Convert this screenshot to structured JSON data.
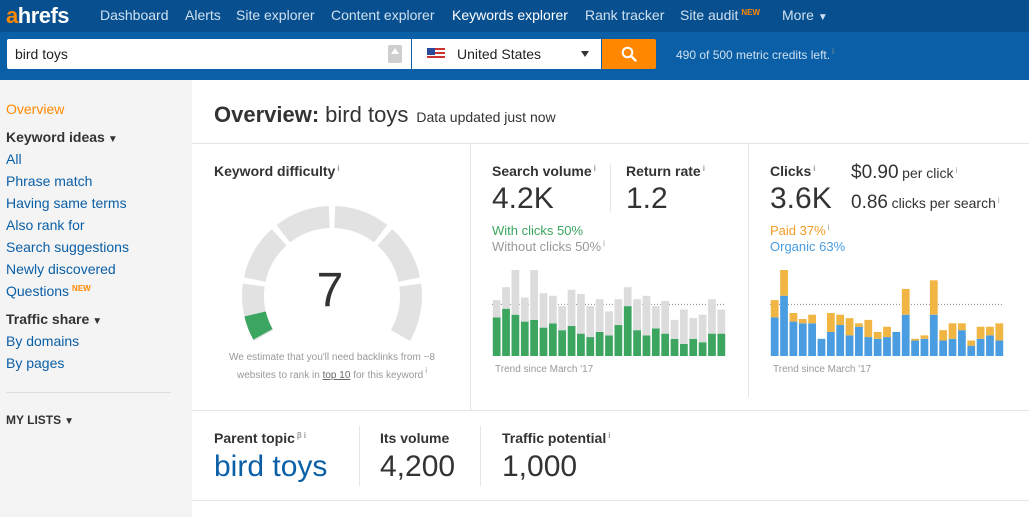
{
  "nav": {
    "logo_a": "a",
    "logo_rest": "hrefs",
    "items": [
      {
        "label": "Dashboard"
      },
      {
        "label": "Alerts"
      },
      {
        "label": "Site explorer"
      },
      {
        "label": "Content explorer"
      },
      {
        "label": "Keywords explorer"
      },
      {
        "label": "Rank tracker"
      },
      {
        "label": "Site audit",
        "badge": "NEW"
      },
      {
        "label": "More"
      }
    ]
  },
  "search": {
    "value": "bird toys",
    "country": "United States",
    "credits": "490 of 500 metric credits left.",
    "info": "i"
  },
  "sidebar": {
    "overview": "Overview",
    "keyword_ideas": "Keyword ideas",
    "items": [
      "All",
      "Phrase match",
      "Having same terms",
      "Also rank for",
      "Search suggestions",
      "Newly discovered",
      "Questions"
    ],
    "questions_badge": "NEW",
    "traffic_share": "Traffic share",
    "traffic_items": [
      "By domains",
      "By pages"
    ],
    "my_lists": "MY LISTS"
  },
  "overview": {
    "title": "Overview:",
    "keyword": "bird toys",
    "updated": "Data updated just now"
  },
  "kd": {
    "label": "Keyword difficulty",
    "value": "7",
    "score": 7,
    "note_pre": "We estimate that you'll need backlinks from ~8 websites to rank in",
    "note_link": "top 10",
    "note_post": "for this keyword"
  },
  "volume": {
    "label": "Search volume",
    "value": "4.2K",
    "with_clicks": "With clicks 50%",
    "without_clicks": "Without clicks 50%",
    "trend": "Trend since March '17"
  },
  "return_rate": {
    "label": "Return rate",
    "value": "1.2"
  },
  "clicks": {
    "label": "Clicks",
    "value": "3.6K",
    "per_click_value": "$0.90",
    "per_click_label": "per click",
    "per_search_value": "0.86",
    "per_search_label": "clicks per search",
    "paid": "Paid 37%",
    "organic": "Organic 63%",
    "trend": "Trend since March '17"
  },
  "parent_topic": {
    "label": "Parent topic",
    "beta": "β",
    "value": "bird toys"
  },
  "its_volume": {
    "label": "Its volume",
    "value": "4,200"
  },
  "traffic_potential": {
    "label": "Traffic potential",
    "value": "1,000"
  },
  "colors": {
    "nav": "#074f8e",
    "search_bar": "#0a5fa6",
    "accent": "#ff8800",
    "with_clicks": "#3ca660",
    "without_clicks": "#dcdcdc",
    "paid": "#f0b542",
    "organic": "#4a9de0"
  },
  "chart_data": [
    {
      "type": "bar",
      "stacked": true,
      "series": [
        {
          "name": "With clicks",
          "values": [
            0.45,
            0.55,
            0.48,
            0.4,
            0.42,
            0.33,
            0.38,
            0.3,
            0.35,
            0.26,
            0.22,
            0.28,
            0.24,
            0.36,
            0.58,
            0.3,
            0.24,
            0.32,
            0.26,
            0.2,
            0.14,
            0.2,
            0.16,
            0.26,
            0.26
          ]
        },
        {
          "name": "Without clicks",
          "values": [
            0.2,
            0.25,
            0.52,
            0.28,
            0.58,
            0.4,
            0.32,
            0.28,
            0.42,
            0.46,
            0.36,
            0.38,
            0.28,
            0.3,
            0.22,
            0.36,
            0.46,
            0.26,
            0.38,
            0.22,
            0.4,
            0.24,
            0.32,
            0.4,
            0.28
          ]
        }
      ],
      "trend": "Trend since March '17"
    },
    {
      "type": "bar",
      "stacked": true,
      "series": [
        {
          "name": "Organic",
          "values": [
            0.45,
            0.7,
            0.4,
            0.38,
            0.38,
            0.2,
            0.28,
            0.36,
            0.24,
            0.34,
            0.22,
            0.2,
            0.22,
            0.28,
            0.48,
            0.18,
            0.2,
            0.48,
            0.18,
            0.2,
            0.3,
            0.12,
            0.2,
            0.24,
            0.18
          ]
        },
        {
          "name": "Paid",
          "values": [
            0.2,
            0.45,
            0.1,
            0.05,
            0.1,
            0.0,
            0.22,
            0.12,
            0.2,
            0.04,
            0.2,
            0.08,
            0.12,
            0.0,
            0.3,
            0.02,
            0.04,
            0.4,
            0.12,
            0.18,
            0.08,
            0.06,
            0.14,
            0.1,
            0.2
          ]
        }
      ],
      "trend": "Trend since March '17"
    }
  ]
}
